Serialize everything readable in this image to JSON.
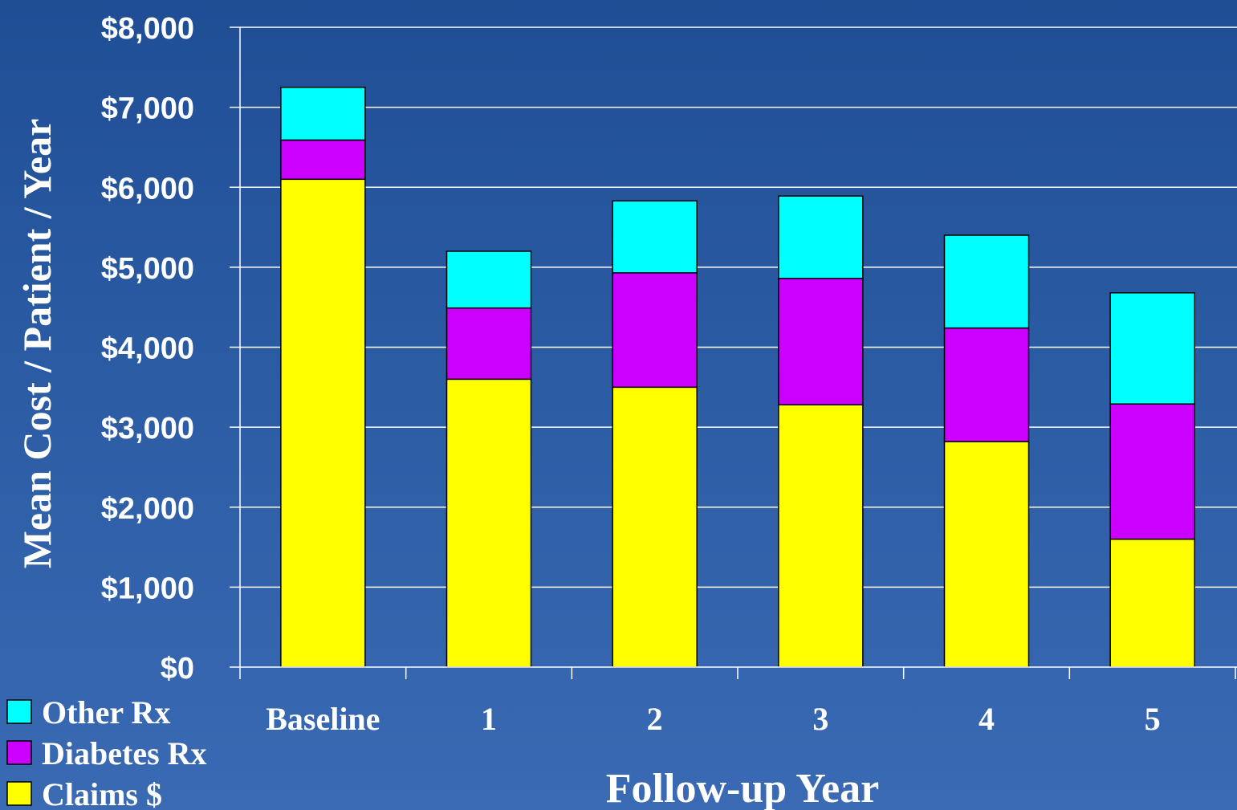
{
  "chart_data": {
    "type": "bar",
    "stacked": true,
    "categories": [
      "Baseline",
      "1",
      "2",
      "3",
      "4",
      "5"
    ],
    "series": [
      {
        "name": "Claims $",
        "color": "#ffff00",
        "values": [
          6100,
          3600,
          3500,
          3280,
          2820,
          1600
        ]
      },
      {
        "name": "Diabetes Rx",
        "color": "#cc00ff",
        "values": [
          490,
          890,
          1430,
          1580,
          1420,
          1690
        ]
      },
      {
        "name": "Other Rx",
        "color": "#00ffff",
        "values": [
          660,
          710,
          900,
          1030,
          1160,
          1390
        ]
      }
    ],
    "legend_order": [
      "Other Rx",
      "Diabetes Rx",
      "Claims $"
    ],
    "xlabel": "Follow-up Year",
    "ylabel": "Mean Cost / Patient / Year",
    "ylim": [
      0,
      8000
    ],
    "yticks": [
      "$0",
      "$1,000",
      "$2,000",
      "$3,000",
      "$4,000",
      "$5,000",
      "$6,000",
      "$7,000",
      "$8,000"
    ],
    "grid": true,
    "legend_position": "bottom-left",
    "background": "#2b5ba3",
    "gridline_color": "#ffffff"
  }
}
